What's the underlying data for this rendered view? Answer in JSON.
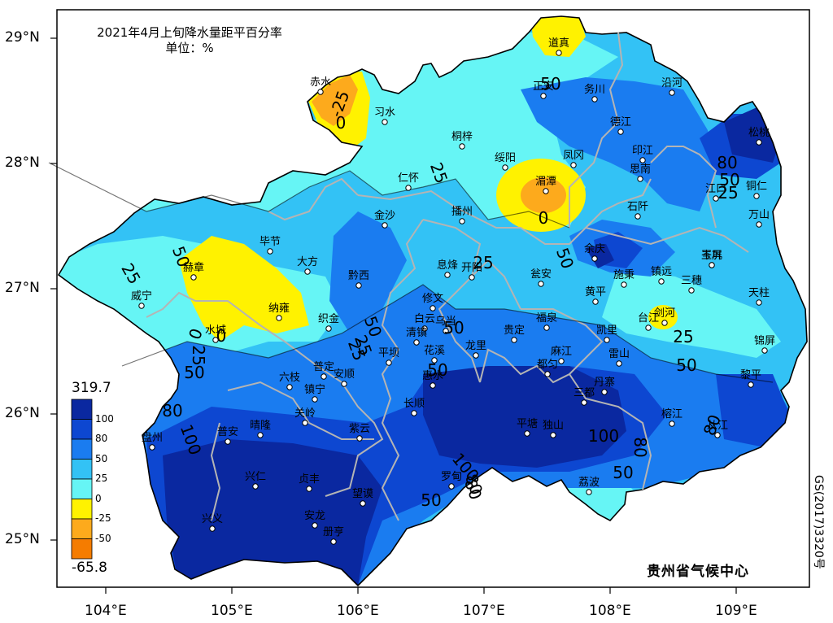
{
  "title": {
    "line1": "2021年4月上旬降水量距平百分率",
    "line2": "单位：%"
  },
  "credit": "贵州省气候中心",
  "map_code": "GS(2017)3320号",
  "axes": {
    "lat_labels": [
      "29°N",
      "28°N",
      "27°N",
      "26°N",
      "25°N"
    ],
    "lon_labels": [
      "104°E",
      "105°E",
      "106°E",
      "107°E",
      "108°E",
      "109°E"
    ]
  },
  "legend": {
    "max": "319.7",
    "min": "-65.8",
    "ticks": [
      "100",
      "80",
      "50",
      "25",
      "0",
      "-25",
      "-50"
    ],
    "colors": {
      "gt100": "#0a28a0",
      "80_100": "#0d47d1",
      "50_80": "#1a7cf0",
      "25_50": "#33c2f5",
      "0_25": "#66f5f5",
      "m25_0": "#fff200",
      "m50_m25": "#fdaa1c",
      "lt_m50": "#f57c00"
    }
  },
  "colors": {
    "border": "#b4b4b4",
    "frame": "#000000",
    "station": "#ffffff"
  },
  "contour_labels": [
    "25",
    "50",
    "0",
    "25",
    "0",
    "25",
    "50",
    "25",
    "50",
    "25",
    "0",
    "50",
    "80",
    "50",
    "100",
    "50",
    "25",
    "80",
    "100",
    "50",
    "100",
    "80",
    "50",
    "50",
    "80",
    "50",
    "25",
    "50",
    "-25",
    "80",
    "0",
    "80",
    "25"
  ],
  "stations": [
    {
      "name": "道真"
    },
    {
      "name": "赤水"
    },
    {
      "name": "习水"
    },
    {
      "name": "正安"
    },
    {
      "name": "务川"
    },
    {
      "name": "沿河"
    },
    {
      "name": "桐梓"
    },
    {
      "name": "德江"
    },
    {
      "name": "松桃"
    },
    {
      "name": "绥阳"
    },
    {
      "name": "凤冈"
    },
    {
      "name": "印江"
    },
    {
      "name": "思南"
    },
    {
      "name": "铜仁"
    },
    {
      "name": "仁怀"
    },
    {
      "name": "湄潭"
    },
    {
      "name": "江口"
    },
    {
      "name": "万山"
    },
    {
      "name": "金沙"
    },
    {
      "name": "播州"
    },
    {
      "name": "石阡"
    },
    {
      "name": "毕节"
    },
    {
      "name": "赫章"
    },
    {
      "name": "大方"
    },
    {
      "name": "余庆"
    },
    {
      "name": "玉屏"
    },
    {
      "name": "岑巩"
    },
    {
      "name": "威宁"
    },
    {
      "name": "黔西"
    },
    {
      "name": "息烽"
    },
    {
      "name": "开阳"
    },
    {
      "name": "瓮安"
    },
    {
      "name": "施秉"
    },
    {
      "name": "镇远"
    },
    {
      "name": "三穗"
    },
    {
      "name": "纳雍"
    },
    {
      "name": "修文"
    },
    {
      "name": "黄平"
    },
    {
      "name": "天柱"
    },
    {
      "name": "织金"
    },
    {
      "name": "白云"
    },
    {
      "name": "乌当"
    },
    {
      "name": "福泉"
    },
    {
      "name": "清镇"
    },
    {
      "name": "贵定"
    },
    {
      "name": "凯里"
    },
    {
      "name": "剑河"
    },
    {
      "name": "台江"
    },
    {
      "name": "水城"
    },
    {
      "name": "花溪"
    },
    {
      "name": "龙里"
    },
    {
      "name": "麻江"
    },
    {
      "name": "锦屏"
    },
    {
      "name": "平坝"
    },
    {
      "name": "雷山"
    },
    {
      "name": "普定"
    },
    {
      "name": "安顺"
    },
    {
      "name": "都匀"
    },
    {
      "name": "六枝"
    },
    {
      "name": "丹寨"
    },
    {
      "name": "黎平"
    },
    {
      "name": "镇宁"
    },
    {
      "name": "长顺"
    },
    {
      "name": "惠水"
    },
    {
      "name": "关岭"
    },
    {
      "name": "三都"
    },
    {
      "name": "普安"
    },
    {
      "name": "晴隆"
    },
    {
      "name": "紫云"
    },
    {
      "name": "平塘"
    },
    {
      "name": "独山"
    },
    {
      "name": "榕江"
    },
    {
      "name": "从江"
    },
    {
      "name": "盘州"
    },
    {
      "name": "兴仁"
    },
    {
      "name": "贞丰"
    },
    {
      "name": "罗甸"
    },
    {
      "name": "荔波"
    },
    {
      "name": "兴义"
    },
    {
      "name": "安龙"
    },
    {
      "name": "望谟"
    },
    {
      "name": "册亨"
    }
  ]
}
